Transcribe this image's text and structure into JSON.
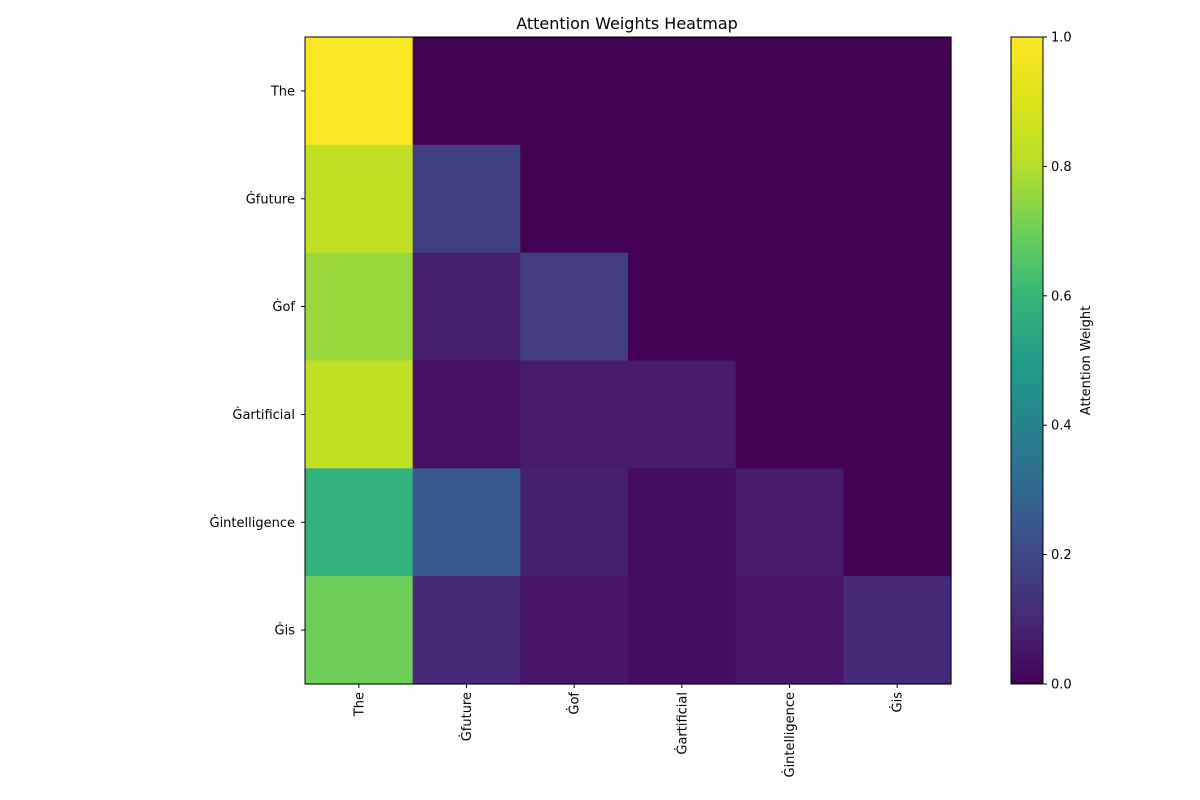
{
  "chart_data": {
    "type": "heatmap",
    "title": "Attention Weights Heatmap",
    "x_categories": [
      "The",
      "Ġfuture",
      "Ġof",
      "Ġartificial",
      "Ġintelligence",
      "Ġis"
    ],
    "y_categories": [
      "The",
      "Ġfuture",
      "Ġof",
      "Ġartificial",
      "Ġintelligence",
      "Ġis"
    ],
    "values": [
      [
        1.0,
        0.0,
        0.0,
        0.0,
        0.0,
        0.0
      ],
      [
        0.83,
        0.17,
        0.0,
        0.0,
        0.0,
        0.0
      ],
      [
        0.76,
        0.08,
        0.16,
        0.0,
        0.0,
        0.0
      ],
      [
        0.83,
        0.04,
        0.07,
        0.07,
        0.0,
        0.0
      ],
      [
        0.58,
        0.25,
        0.08,
        0.03,
        0.07,
        0.0
      ],
      [
        0.7,
        0.1,
        0.05,
        0.03,
        0.05,
        0.11
      ]
    ],
    "colormap": "viridis",
    "colorbar": {
      "label": "Attention Weight",
      "range": [
        0.0,
        1.0
      ],
      "ticks": [
        "0.0",
        "0.2",
        "0.4",
        "0.6",
        "0.8",
        "1.0"
      ]
    }
  }
}
